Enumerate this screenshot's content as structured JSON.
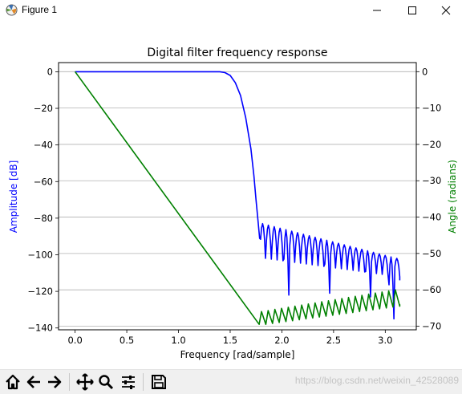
{
  "window": {
    "title": "Figure 1",
    "minimize_icon": "minimize-icon",
    "maximize_icon": "maximize-icon",
    "close_icon": "close-icon"
  },
  "toolbar": {
    "buttons": [
      "home-icon",
      "back-arrow-icon",
      "forward-arrow-icon",
      "pan-icon",
      "zoom-icon",
      "configure-subplots-icon",
      "save-icon"
    ],
    "watermark": "https://blog.csdn.net/weixin_42528089"
  },
  "chart_data": {
    "type": "line",
    "title": "Digital filter frequency response",
    "xlabel": "Frequency [rad/sample]",
    "ylabel": "Amplitude [dB]",
    "ylabel_right": "Angle (radians)",
    "xlim": [
      -0.16,
      3.3
    ],
    "ylim": [
      -141,
      5
    ],
    "ylim_right": [
      -71.0,
      2.5
    ],
    "x_ticks": [
      0.0,
      0.5,
      1.0,
      1.5,
      2.0,
      2.5,
      3.0
    ],
    "x_tick_labels": [
      "0.0",
      "0.5",
      "1.0",
      "1.5",
      "2.0",
      "2.5",
      "3.0"
    ],
    "y_ticks": [
      0,
      -20,
      -40,
      -60,
      -80,
      -100,
      -120,
      -140
    ],
    "y_tick_labels": [
      "0",
      "−20",
      "−40",
      "−60",
      "−80",
      "−100",
      "−120",
      "−140"
    ],
    "y2_ticks": [
      0,
      -10,
      -20,
      -30,
      -40,
      -50,
      -60,
      -70
    ],
    "y2_tick_labels": [
      "0",
      "−10",
      "−20",
      "−30",
      "−40",
      "−50",
      "−60",
      "−70"
    ],
    "grid": "horizontal at right-axis ticks",
    "colors": {
      "amplitude": "#0000ff",
      "angle": "#008000",
      "ylabel": "#0000ff",
      "ylabel_right": "#008000"
    },
    "series": [
      {
        "axis": "left",
        "x": [
          0.0,
          1.0,
          1.4,
          1.45,
          1.5,
          1.55,
          1.6,
          1.65,
          1.7,
          1.73,
          1.75,
          1.77,
          1.785
        ],
        "y": [
          0,
          0,
          0,
          -0.5,
          -2,
          -6,
          -13,
          -25,
          -42,
          -57,
          -70,
          -82,
          -91
        ],
        "stopband": {
          "x_start": 1.785,
          "x_end": 3.14,
          "lobes": 24,
          "peak_start": -83,
          "peak_end": -102,
          "valley_start": -102,
          "valley_end": -112,
          "deep_notches": [
            {
              "x": 2.05,
              "y": -122
            },
            {
              "x": 2.46,
              "y": -121
            },
            {
              "x": 2.88,
              "y": -123
            },
            {
              "x": 3.07,
              "y": -135
            }
          ],
          "end_value": -114
        }
      },
      {
        "axis": "right",
        "x": [
          0.0,
          1.78
        ],
        "y": [
          0,
          -69.5
        ],
        "stopband": {
          "x_start": 1.78,
          "x_end": 3.14,
          "teeth": 21,
          "low_start": -69.5,
          "low_end": -64.5,
          "high_start": -66,
          "high_end": -60,
          "end_value": -64
        }
      }
    ]
  }
}
